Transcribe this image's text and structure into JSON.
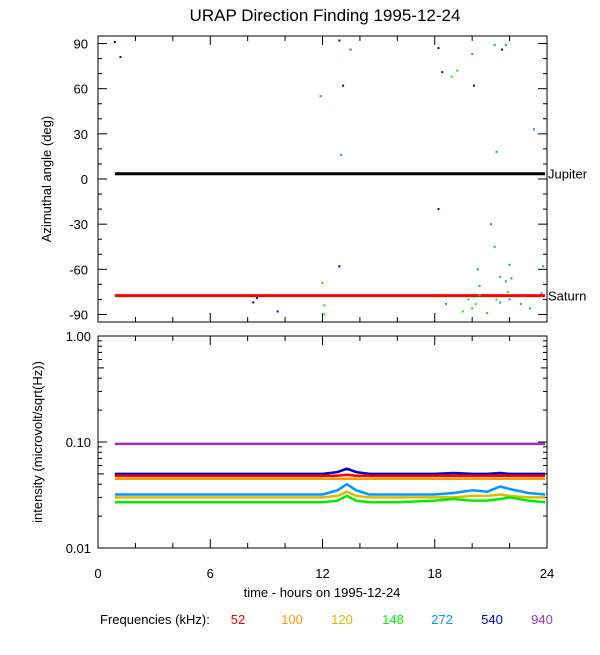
{
  "chart_data": [
    {
      "type": "scatter",
      "title": "URAP Direction Finding  1995-12-24",
      "ylabel": "Azimuthal angle (deg)",
      "ylim": [
        -95,
        95
      ],
      "yticks": [
        90,
        60,
        30,
        0,
        -30,
        -60,
        -90
      ],
      "ytick_labels": [
        "90",
        "60",
        "30",
        "0",
        "-30",
        "-60",
        "-90"
      ],
      "xlim": [
        0,
        24
      ],
      "grid": false,
      "reference_lines": [
        {
          "name": "Jupiter",
          "y": 3.5,
          "x": [
            0.9,
            23.9
          ],
          "color": "#000000"
        },
        {
          "name": "Saturn",
          "y": -77.5,
          "x": [
            0.9,
            23.9
          ],
          "color": "#ff0000"
        }
      ],
      "scatter_points": [
        {
          "x": 0.9,
          "y": 91,
          "color": "#0000cc"
        },
        {
          "x": 1.2,
          "y": 81,
          "color": "#0000cc"
        },
        {
          "x": 12.9,
          "y": 92,
          "color": "#0000cc"
        },
        {
          "x": 13.1,
          "y": 62,
          "color": "#0000cc"
        },
        {
          "x": 13.0,
          "y": 16,
          "color": "#0099ff"
        },
        {
          "x": 13.5,
          "y": 86,
          "color": "#9933cc"
        },
        {
          "x": 11.9,
          "y": 55,
          "color": "#0099ff"
        },
        {
          "x": 18.2,
          "y": 87,
          "color": "#0000cc"
        },
        {
          "x": 18.4,
          "y": 71,
          "color": "#0000cc"
        },
        {
          "x": 18.9,
          "y": 68,
          "color": "#00ee00"
        },
        {
          "x": 19.2,
          "y": 72,
          "color": "#00ee00"
        },
        {
          "x": 20.1,
          "y": 62,
          "color": "#0000cc"
        },
        {
          "x": 20.0,
          "y": 83,
          "color": "#0099ff"
        },
        {
          "x": 21.2,
          "y": 89,
          "color": "#0099ff"
        },
        {
          "x": 21.8,
          "y": 89,
          "color": "#0099ff"
        },
        {
          "x": 21.6,
          "y": 86,
          "color": "#0000cc"
        },
        {
          "x": 23.3,
          "y": 33,
          "color": "#0099ff"
        },
        {
          "x": 21.3,
          "y": 18,
          "color": "#0099ff"
        },
        {
          "x": 18.2,
          "y": -20,
          "color": "#0000cc"
        },
        {
          "x": 21.0,
          "y": -30,
          "color": "#0099ff"
        },
        {
          "x": 21.2,
          "y": -45,
          "color": "#0099ff"
        },
        {
          "x": 12.9,
          "y": -58,
          "color": "#0000cc"
        },
        {
          "x": 23.8,
          "y": -58,
          "color": "#0099ff"
        },
        {
          "x": 22.0,
          "y": -57,
          "color": "#0099ff"
        },
        {
          "x": 20.3,
          "y": -60,
          "color": "#0099ff"
        },
        {
          "x": 21.5,
          "y": -65,
          "color": "#0099ff"
        },
        {
          "x": 21.8,
          "y": -68,
          "color": "#0099ff"
        },
        {
          "x": 22.1,
          "y": -66,
          "color": "#0099ff"
        },
        {
          "x": 20.4,
          "y": -71,
          "color": "#0099ff"
        },
        {
          "x": 12.0,
          "y": -69,
          "color": "#00ee00"
        },
        {
          "x": 19.8,
          "y": -80,
          "color": "#00ee00"
        },
        {
          "x": 20.2,
          "y": -83,
          "color": "#00ee00"
        },
        {
          "x": 21.3,
          "y": -80,
          "color": "#00ee00"
        },
        {
          "x": 21.9,
          "y": -75,
          "color": "#00ee00"
        },
        {
          "x": 21.5,
          "y": -82,
          "color": "#0099ff"
        },
        {
          "x": 22.0,
          "y": -80,
          "color": "#0099ff"
        },
        {
          "x": 19.5,
          "y": -88,
          "color": "#00ee00"
        },
        {
          "x": 20.0,
          "y": -86,
          "color": "#00ee00"
        },
        {
          "x": 20.8,
          "y": -89,
          "color": "#00ee00"
        },
        {
          "x": 22.6,
          "y": -83,
          "color": "#0099ff"
        },
        {
          "x": 23.1,
          "y": -86,
          "color": "#0099ff"
        },
        {
          "x": 12.1,
          "y": -84,
          "color": "#00ee00"
        },
        {
          "x": 12.1,
          "y": -90,
          "color": "#00ee00"
        },
        {
          "x": 8.5,
          "y": -79,
          "color": "#0000cc"
        },
        {
          "x": 8.3,
          "y": -82,
          "color": "#0000cc"
        },
        {
          "x": 9.6,
          "y": -88,
          "color": "#0000cc"
        },
        {
          "x": 18.6,
          "y": -83,
          "color": "#0099ff"
        },
        {
          "x": 20.4,
          "y": -77,
          "color": "#00ee00"
        },
        {
          "x": 23.7,
          "y": -76,
          "color": "#0099ff"
        }
      ]
    },
    {
      "type": "line",
      "ylabel": "intensity (microvolt/sqrt(Hz))",
      "xlabel": "time - hours on 1995-12-24",
      "yscale": "log",
      "ylim": [
        0.01,
        1.0
      ],
      "yticks": [
        1.0,
        0.1,
        0.01
      ],
      "ytick_labels": [
        "1.00",
        "0.10",
        "0.01"
      ],
      "xlim": [
        0,
        24
      ],
      "xticks": [
        0,
        6,
        12,
        18,
        24
      ],
      "xtick_labels": [
        "0",
        "6",
        "12",
        "18",
        "24"
      ],
      "grid": false,
      "x": [
        0.9,
        2,
        4,
        6,
        8,
        10,
        12,
        12.8,
        13.3,
        13.8,
        14.5,
        16,
        18,
        19,
        20,
        20.8,
        21.5,
        22,
        23,
        23.9
      ],
      "series": [
        {
          "name": "940",
          "color": "#9933cc",
          "values": [
            0.096,
            0.096,
            0.096,
            0.096,
            0.096,
            0.096,
            0.096,
            0.096,
            0.096,
            0.096,
            0.096,
            0.096,
            0.096,
            0.096,
            0.096,
            0.096,
            0.096,
            0.096,
            0.096,
            0.096
          ]
        },
        {
          "name": "540",
          "color": "#0000cc",
          "values": [
            0.05,
            0.05,
            0.05,
            0.05,
            0.05,
            0.05,
            0.05,
            0.052,
            0.056,
            0.052,
            0.05,
            0.05,
            0.05,
            0.051,
            0.05,
            0.05,
            0.051,
            0.05,
            0.05,
            0.05
          ]
        },
        {
          "name": "52",
          "color": "#ff0000",
          "values": [
            0.048,
            0.048,
            0.048,
            0.048,
            0.048,
            0.048,
            0.048,
            0.048,
            0.049,
            0.048,
            0.048,
            0.048,
            0.048,
            0.048,
            0.048,
            0.048,
            0.048,
            0.048,
            0.048,
            0.048
          ]
        },
        {
          "name": "100",
          "color": "#ff9900",
          "values": [
            0.045,
            0.045,
            0.045,
            0.045,
            0.045,
            0.045,
            0.045,
            0.045,
            0.045,
            0.045,
            0.045,
            0.045,
            0.045,
            0.045,
            0.045,
            0.045,
            0.045,
            0.045,
            0.045,
            0.045
          ]
        },
        {
          "name": "120",
          "color": "#ddbb00",
          "values": [
            0.03,
            0.03,
            0.03,
            0.03,
            0.03,
            0.03,
            0.03,
            0.031,
            0.034,
            0.031,
            0.03,
            0.03,
            0.03,
            0.03,
            0.031,
            0.031,
            0.032,
            0.031,
            0.03,
            0.03
          ]
        },
        {
          "name": "272",
          "color": "#0099ff",
          "values": [
            0.032,
            0.032,
            0.032,
            0.032,
            0.032,
            0.032,
            0.032,
            0.035,
            0.04,
            0.035,
            0.032,
            0.032,
            0.032,
            0.033,
            0.035,
            0.034,
            0.038,
            0.036,
            0.033,
            0.032
          ]
        },
        {
          "name": "148",
          "color": "#00ee00",
          "values": [
            0.027,
            0.027,
            0.027,
            0.027,
            0.027,
            0.027,
            0.027,
            0.028,
            0.031,
            0.028,
            0.027,
            0.027,
            0.028,
            0.029,
            0.028,
            0.028,
            0.029,
            0.03,
            0.028,
            0.027
          ]
        }
      ]
    }
  ],
  "legend": {
    "label": "Frequencies (kHz):",
    "items": [
      {
        "label": "52",
        "color": "#ff0000"
      },
      {
        "label": "100",
        "color": "#ff9900"
      },
      {
        "label": "120",
        "color": "#ddbb00"
      },
      {
        "label": "148",
        "color": "#00ee00"
      },
      {
        "label": "272",
        "color": "#0099ff"
      },
      {
        "label": "540",
        "color": "#0000cc"
      },
      {
        "label": "940",
        "color": "#9933cc"
      }
    ]
  }
}
